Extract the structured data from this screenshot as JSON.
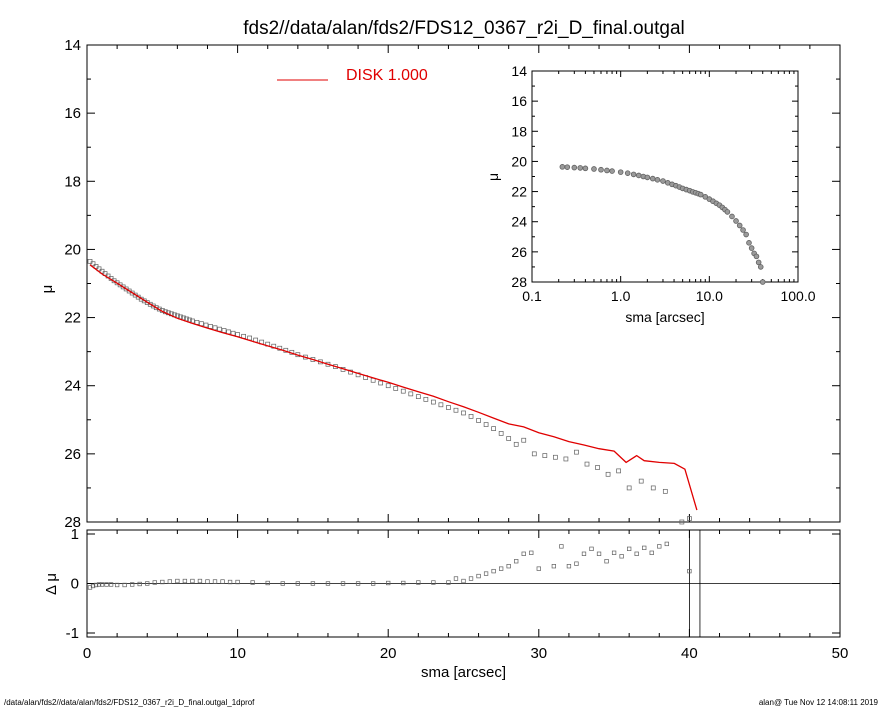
{
  "title": "fds2//data/alan/fds2/FDS12_0367_r2i_D_final.outgal",
  "footer_left": "/data/alan/fds2//data/alan/fds2/FDS12_0367_r2i_D_final.outgal_1dprof",
  "footer_right": "alan@  Tue Nov 12 14:08:11 2019",
  "colors": {
    "model": "#e00000",
    "points": "#606060",
    "axes": "#000000"
  },
  "chart_data": [
    {
      "id": "main",
      "type": "scatter",
      "xlabel": "",
      "ylabel": "μ",
      "xlim": [
        0,
        50
      ],
      "ylim": [
        28,
        14
      ],
      "y_inverted": true,
      "xticks": [
        0,
        10,
        20,
        30,
        40,
        50
      ],
      "yticks": [
        14,
        16,
        18,
        20,
        22,
        24,
        26,
        28
      ],
      "legend": {
        "label": "DISK  1.000",
        "position": "top-center"
      },
      "series": [
        {
          "name": "data",
          "kind": "points",
          "x": [
            0.2,
            0.4,
            0.6,
            0.8,
            1.0,
            1.2,
            1.4,
            1.6,
            1.8,
            2.0,
            2.2,
            2.4,
            2.6,
            2.8,
            3.0,
            3.2,
            3.4,
            3.6,
            3.8,
            4.0,
            4.2,
            4.4,
            4.6,
            4.8,
            5.0,
            5.2,
            5.4,
            5.6,
            5.8,
            6.0,
            6.2,
            6.4,
            6.6,
            6.8,
            7.0,
            7.3,
            7.6,
            7.9,
            8.2,
            8.5,
            8.8,
            9.1,
            9.4,
            9.7,
            10.0,
            10.4,
            10.8,
            11.2,
            11.6,
            12.0,
            12.4,
            12.8,
            13.2,
            13.6,
            14.0,
            14.5,
            15.0,
            15.5,
            16.0,
            16.5,
            17.0,
            17.5,
            18.0,
            18.5,
            19.0,
            19.5,
            20.0,
            20.5,
            21.0,
            21.5,
            22.0,
            22.5,
            23.0,
            23.5,
            24.0,
            24.5,
            25.0,
            25.5,
            26.0,
            26.5,
            27.0,
            27.5,
            28.0,
            28.5,
            29.0,
            29.7,
            30.4,
            31.1,
            31.8,
            32.5,
            33.2,
            33.9,
            34.6,
            35.3,
            36.0,
            36.8,
            37.6,
            38.4,
            39.5,
            40.0
          ],
          "y": [
            20.35,
            20.42,
            20.5,
            20.57,
            20.64,
            20.71,
            20.78,
            20.85,
            20.92,
            20.98,
            21.04,
            21.1,
            21.16,
            21.22,
            21.28,
            21.34,
            21.4,
            21.46,
            21.51,
            21.56,
            21.61,
            21.66,
            21.71,
            21.75,
            21.79,
            21.83,
            21.86,
            21.89,
            21.92,
            21.95,
            21.98,
            22.01,
            22.04,
            22.07,
            22.1,
            22.14,
            22.18,
            22.22,
            22.26,
            22.3,
            22.34,
            22.38,
            22.42,
            22.46,
            22.5,
            22.55,
            22.6,
            22.66,
            22.72,
            22.78,
            22.84,
            22.9,
            22.96,
            23.02,
            23.09,
            23.16,
            23.23,
            23.3,
            23.37,
            23.44,
            23.52,
            23.6,
            23.68,
            23.76,
            23.84,
            23.92,
            24.0,
            24.08,
            24.16,
            24.24,
            24.32,
            24.4,
            24.48,
            24.56,
            24.64,
            24.72,
            24.8,
            24.9,
            25.02,
            25.14,
            25.26,
            25.4,
            25.55,
            25.72,
            25.6,
            26.0,
            26.05,
            26.1,
            26.15,
            25.95,
            26.3,
            26.4,
            26.6,
            26.5,
            27.0,
            26.8,
            27.0,
            27.1,
            28.0,
            27.9
          ]
        },
        {
          "name": "DISK  1.000",
          "kind": "line",
          "x": [
            0.2,
            1,
            2,
            3,
            4,
            5,
            6,
            7,
            8,
            9,
            10,
            11,
            12,
            13,
            14,
            15,
            16,
            17,
            18,
            19,
            20,
            21,
            22,
            23,
            24,
            25,
            26,
            27,
            28,
            29,
            30,
            31,
            32,
            33,
            34,
            35,
            35.8,
            36.5,
            37,
            38,
            39,
            39.7,
            40.5
          ],
          "y": [
            20.45,
            20.72,
            20.99,
            21.27,
            21.55,
            21.82,
            22.02,
            22.17,
            22.31,
            22.44,
            22.56,
            22.7,
            22.83,
            22.96,
            23.1,
            23.23,
            23.37,
            23.5,
            23.64,
            23.77,
            23.9,
            24.04,
            24.18,
            24.31,
            24.47,
            24.62,
            24.78,
            24.95,
            25.12,
            25.21,
            25.38,
            25.5,
            25.64,
            25.74,
            25.85,
            25.92,
            26.25,
            26.05,
            26.2,
            26.25,
            26.28,
            26.45,
            27.65
          ]
        }
      ]
    },
    {
      "id": "inset",
      "type": "scatter",
      "xlabel": "sma [arcsec]",
      "ylabel": "μ",
      "x_scale": "log",
      "xlim": [
        0.1,
        100
      ],
      "ylim": [
        28,
        14
      ],
      "y_inverted": true,
      "xticks": [
        0.1,
        1.0,
        10.0,
        100.0
      ],
      "xtick_labels": [
        "0.1",
        "1.0",
        "10.0",
        "100.0"
      ],
      "yticks": [
        14,
        16,
        18,
        20,
        22,
        24,
        26,
        28
      ],
      "series": [
        {
          "name": "data",
          "kind": "points",
          "x": [
            0.22,
            0.25,
            0.3,
            0.35,
            0.4,
            0.5,
            0.6,
            0.7,
            0.8,
            1.0,
            1.2,
            1.4,
            1.6,
            1.8,
            2.0,
            2.3,
            2.6,
            3.0,
            3.4,
            3.8,
            4.2,
            4.6,
            5.0,
            5.5,
            6.0,
            6.5,
            7.0,
            7.5,
            8.0,
            9.0,
            10.0,
            11.0,
            12.0,
            13.0,
            14.0,
            15.0,
            16.0,
            18.0,
            20.0,
            22.0,
            24.0,
            26.0,
            28.0,
            30.0,
            32.0,
            34.0,
            36.0,
            38.0,
            40.0
          ],
          "y": [
            20.36,
            20.38,
            20.41,
            20.43,
            20.46,
            20.5,
            20.55,
            20.6,
            20.64,
            20.71,
            20.78,
            20.86,
            20.93,
            21.0,
            21.06,
            21.14,
            21.22,
            21.3,
            21.42,
            21.52,
            21.61,
            21.7,
            21.79,
            21.87,
            21.94,
            22.02,
            22.08,
            22.14,
            22.2,
            22.35,
            22.5,
            22.64,
            22.78,
            22.9,
            23.05,
            23.2,
            23.35,
            23.65,
            23.95,
            24.25,
            24.55,
            24.85,
            25.4,
            25.75,
            26.1,
            26.3,
            26.7,
            27.0,
            28.0
          ]
        }
      ]
    },
    {
      "id": "residual",
      "type": "scatter",
      "xlabel": "sma [arcsec]",
      "ylabel": "Δ μ",
      "xlim": [
        0,
        50
      ],
      "ylim": [
        -1,
        1
      ],
      "xticks": [
        0,
        10,
        20,
        30,
        40,
        50
      ],
      "yticks": [
        -1,
        0,
        1
      ],
      "reference_lines": {
        "horizontal": [
          0
        ],
        "vertical": [
          40.0,
          40.7
        ]
      },
      "series": [
        {
          "name": "residual",
          "kind": "points",
          "x": [
            0.2,
            0.4,
            0.6,
            0.8,
            1.0,
            1.3,
            1.6,
            2.0,
            2.5,
            3.0,
            3.5,
            4.0,
            4.5,
            5.0,
            5.5,
            6.0,
            6.5,
            7.0,
            7.5,
            8.0,
            8.5,
            9.0,
            9.5,
            10.0,
            11.0,
            12.0,
            13.0,
            14.0,
            15.0,
            16.0,
            17.0,
            18.0,
            19.0,
            20.0,
            21.0,
            22.0,
            23.0,
            24.0,
            24.5,
            25.0,
            25.5,
            26.0,
            26.5,
            27.0,
            27.5,
            28.0,
            28.5,
            29.0,
            29.5,
            30.0,
            31.0,
            31.5,
            32.0,
            32.5,
            33.0,
            33.5,
            34.0,
            34.5,
            35.0,
            35.5,
            36.0,
            36.5,
            37.0,
            37.5,
            38.0,
            38.5,
            40.0
          ],
          "y": [
            -0.08,
            -0.05,
            -0.03,
            -0.02,
            -0.02,
            -0.02,
            -0.02,
            -0.03,
            -0.03,
            -0.02,
            -0.01,
            0.0,
            0.02,
            0.03,
            0.04,
            0.05,
            0.05,
            0.05,
            0.05,
            0.04,
            0.04,
            0.04,
            0.03,
            0.03,
            0.02,
            0.01,
            0.0,
            0.0,
            0.0,
            0.0,
            0.0,
            0.0,
            0.0,
            0.01,
            0.01,
            0.02,
            0.02,
            0.02,
            0.1,
            0.05,
            0.1,
            0.15,
            0.2,
            0.25,
            0.3,
            0.35,
            0.45,
            0.6,
            0.62,
            0.3,
            0.35,
            0.75,
            0.35,
            0.4,
            0.6,
            0.7,
            0.6,
            0.45,
            0.62,
            0.55,
            0.7,
            0.6,
            0.72,
            0.62,
            0.75,
            0.8,
            0.25
          ]
        }
      ]
    }
  ]
}
